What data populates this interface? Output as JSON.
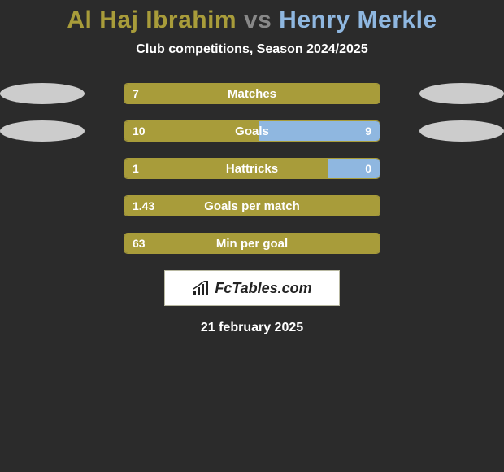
{
  "title": {
    "player1": "Al Haj Ibrahim",
    "vs": "vs",
    "player2": "Henry Merkle"
  },
  "subtitle": "Club competitions, Season 2024/2025",
  "colors": {
    "player1_bar": "#a89c3a",
    "player1_oval": "#cccccc",
    "player2_bar": "#8fb7e0",
    "player2_oval": "#cccccc",
    "bar_border": "#a89c3a",
    "bar_bg": "#3a3a3a"
  },
  "stats": [
    {
      "label": "Matches",
      "left_value": "7",
      "right_value": "",
      "left_fill_pct": 100,
      "right_fill_pct": 0,
      "show_left_oval": true,
      "show_right_oval": true
    },
    {
      "label": "Goals",
      "left_value": "10",
      "right_value": "9",
      "left_fill_pct": 53,
      "right_fill_pct": 47,
      "show_left_oval": true,
      "show_right_oval": true
    },
    {
      "label": "Hattricks",
      "left_value": "1",
      "right_value": "0",
      "left_fill_pct": 80,
      "right_fill_pct": 20,
      "show_left_oval": false,
      "show_right_oval": false
    },
    {
      "label": "Goals per match",
      "left_value": "1.43",
      "right_value": "",
      "left_fill_pct": 100,
      "right_fill_pct": 0,
      "show_left_oval": false,
      "show_right_oval": false
    },
    {
      "label": "Min per goal",
      "left_value": "63",
      "right_value": "",
      "left_fill_pct": 100,
      "right_fill_pct": 0,
      "show_left_oval": false,
      "show_right_oval": false
    }
  ],
  "logo_text": "FcTables.com",
  "date": "21 february 2025"
}
